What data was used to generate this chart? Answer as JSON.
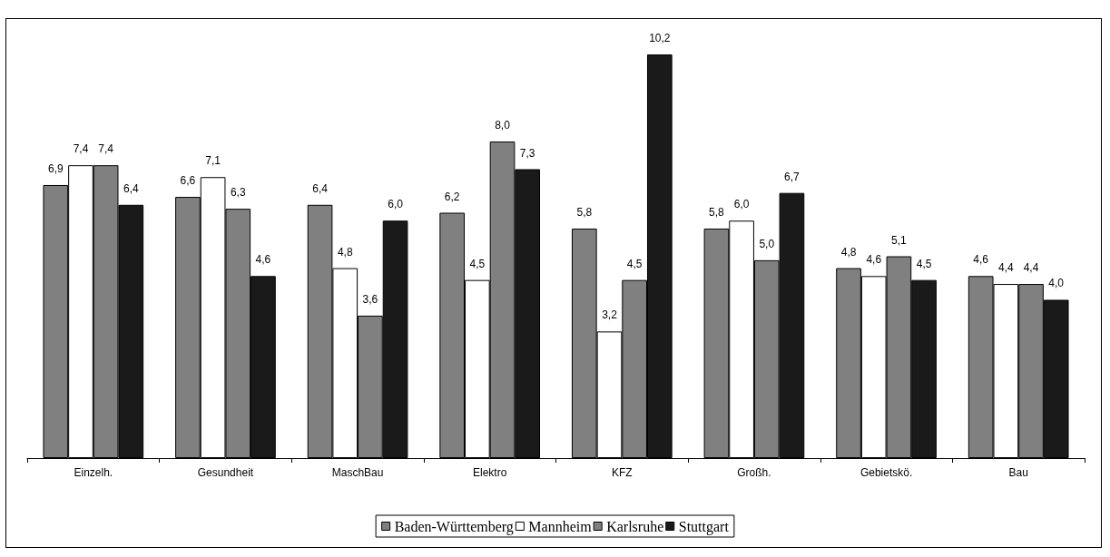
{
  "chart_data": {
    "type": "bar",
    "categories": [
      "Einzelh.",
      "Gesundheit",
      "MaschBau",
      "Elektro",
      "KFZ",
      "Großh.",
      "Gebietskö.",
      "Bau"
    ],
    "series": [
      {
        "name": "Baden-Württemberg",
        "color": "#808080",
        "values": [
          6.9,
          6.6,
          6.4,
          6.2,
          5.8,
          5.8,
          4.8,
          4.6
        ],
        "value_labels": [
          "6,9",
          "6,6",
          "6,4",
          "6,2",
          "5,8",
          "5,8",
          "4,8",
          "4,6"
        ]
      },
      {
        "name": "Mannheim",
        "color": "#ffffff",
        "values": [
          7.4,
          7.1,
          4.8,
          4.5,
          3.2,
          6.0,
          4.6,
          4.4
        ],
        "value_labels": [
          "7,4",
          "7,1",
          "4,8",
          "4,5",
          "3,2",
          "6,0",
          "4,6",
          "4,4"
        ]
      },
      {
        "name": "Karlsruhe",
        "color": "#808080",
        "values": [
          7.4,
          6.3,
          3.6,
          8.0,
          4.5,
          5.0,
          5.1,
          4.4
        ],
        "value_labels": [
          "7,4",
          "6,3",
          "3,6",
          "8,0",
          "4,5",
          "5,0",
          "5,1",
          "4,4"
        ]
      },
      {
        "name": "Stuttgart",
        "color": "#1a1a1a",
        "values": [
          6.4,
          4.6,
          6.0,
          7.3,
          10.2,
          6.7,
          4.5,
          4.0
        ],
        "value_labels": [
          "6,4",
          "4,6",
          "6,0",
          "7,3",
          "10,2",
          "6,7",
          "4,5",
          "4,0"
        ]
      }
    ],
    "grid": false,
    "legend": "bottom",
    "tick_labels": "x"
  }
}
